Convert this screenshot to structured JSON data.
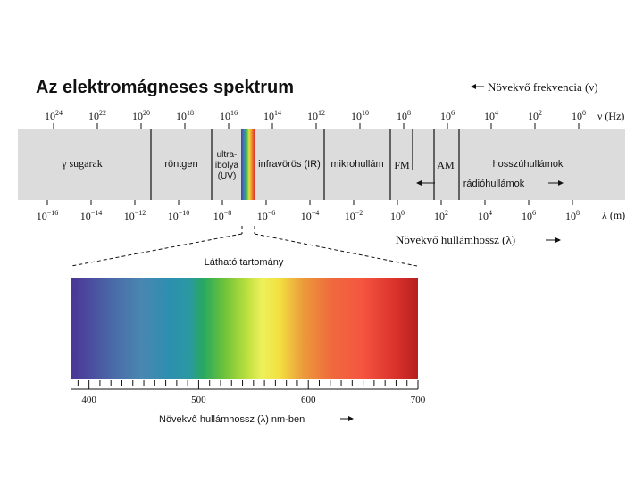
{
  "title": "Az elektromágneses spektrum",
  "frequency_axis": {
    "label": "ν (Hz)",
    "arrow_caption": "Növekvő frekvencia (ν)",
    "ticks": [
      {
        "base": "10",
        "exp": "24"
      },
      {
        "base": "10",
        "exp": "22"
      },
      {
        "base": "10",
        "exp": "20"
      },
      {
        "base": "10",
        "exp": "18"
      },
      {
        "base": "10",
        "exp": "16"
      },
      {
        "base": "10",
        "exp": "14"
      },
      {
        "base": "10",
        "exp": "12"
      },
      {
        "base": "10",
        "exp": "10"
      },
      {
        "base": "10",
        "exp": "8"
      },
      {
        "base": "10",
        "exp": "6"
      },
      {
        "base": "10",
        "exp": "4"
      },
      {
        "base": "10",
        "exp": "2"
      },
      {
        "base": "10",
        "exp": "0"
      }
    ]
  },
  "wavelength_axis": {
    "label": "λ (m)",
    "arrow_caption": "Növekvő hullámhossz (λ)",
    "ticks": [
      {
        "base": "10",
        "exp": "−16"
      },
      {
        "base": "10",
        "exp": "−14"
      },
      {
        "base": "10",
        "exp": "−12"
      },
      {
        "base": "10",
        "exp": "−10"
      },
      {
        "base": "10",
        "exp": "−8"
      },
      {
        "base": "10",
        "exp": "−6"
      },
      {
        "base": "10",
        "exp": "−4"
      },
      {
        "base": "10",
        "exp": "−2"
      },
      {
        "base": "10",
        "exp": "0"
      },
      {
        "base": "10",
        "exp": "2"
      },
      {
        "base": "10",
        "exp": "4"
      },
      {
        "base": "10",
        "exp": "6"
      },
      {
        "base": "10",
        "exp": "8"
      }
    ]
  },
  "bands": {
    "gamma": "γ sugarak",
    "xray": "röntgen",
    "uv_lines": [
      "ultra-",
      "ibolya",
      "(UV)"
    ],
    "ir": "infravörös (IR)",
    "micro": "mikrohullám",
    "fm": "FM",
    "am": "AM",
    "longwave": "hosszúhullámok",
    "radio": "rádióhullámok"
  },
  "visible": {
    "title": "Látható tartomány",
    "ticks": [
      "400",
      "500",
      "600",
      "700"
    ],
    "caption": "Növekvő hullámhossz (λ) nm-ben"
  },
  "colors": {
    "band_background": "#dcdcdc",
    "line": "#111111",
    "text": "#111111"
  }
}
